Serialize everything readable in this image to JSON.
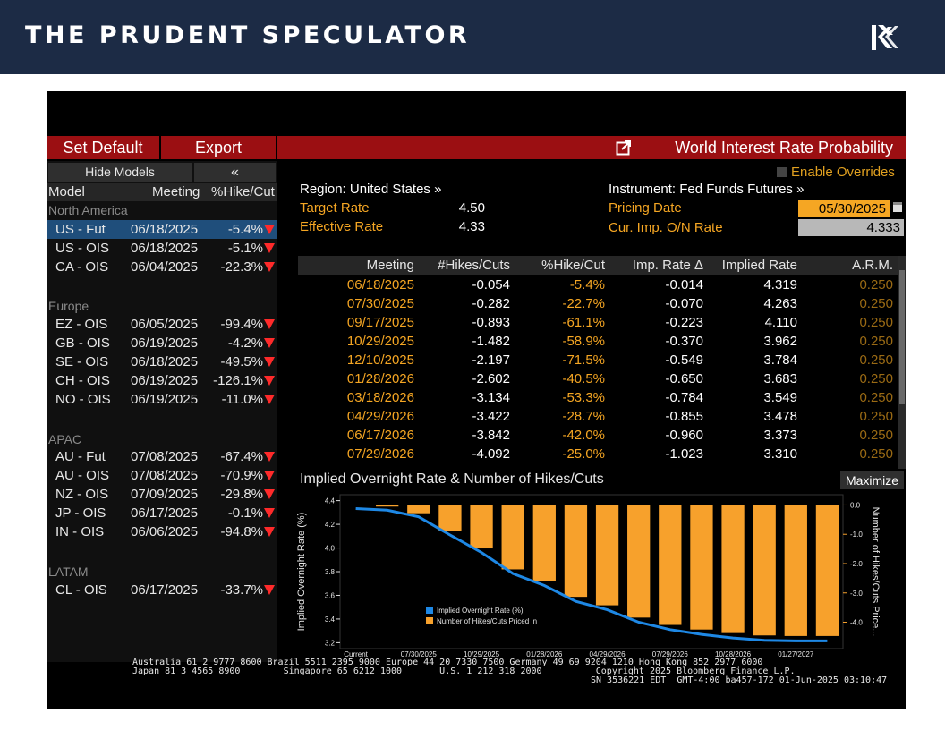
{
  "brand": {
    "title": "THE PRUDENT SPECULATOR"
  },
  "toolbar": {
    "set_default": "Set Default",
    "export": "Export",
    "window_title": "World Interest Rate Probability"
  },
  "left_panel": {
    "hide_models": "Hide Models",
    "collapse": "«",
    "headers": {
      "model": "Model",
      "meeting": "Meeting",
      "pct": "%Hike/Cut"
    },
    "groups": [
      {
        "name": "North America",
        "rows": [
          {
            "model": "US - Fut",
            "meeting": "06/18/2025",
            "pct": "-5.4%",
            "selected": true
          },
          {
            "model": "US - OIS",
            "meeting": "06/18/2025",
            "pct": "-5.1%"
          },
          {
            "model": "CA - OIS",
            "meeting": "06/04/2025",
            "pct": "-22.3%"
          }
        ]
      },
      {
        "name": "Europe",
        "rows": [
          {
            "model": "EZ - OIS",
            "meeting": "06/05/2025",
            "pct": "-99.4%"
          },
          {
            "model": "GB - OIS",
            "meeting": "06/19/2025",
            "pct": "-4.2%"
          },
          {
            "model": "SE - OIS",
            "meeting": "06/18/2025",
            "pct": "-49.5%"
          },
          {
            "model": "CH - OIS",
            "meeting": "06/19/2025",
            "pct": "-126.1%"
          },
          {
            "model": "NO - OIS",
            "meeting": "06/19/2025",
            "pct": "-11.0%"
          }
        ]
      },
      {
        "name": "APAC",
        "rows": [
          {
            "model": "AU - Fut",
            "meeting": "07/08/2025",
            "pct": "-67.4%"
          },
          {
            "model": "AU - OIS",
            "meeting": "07/08/2025",
            "pct": "-70.9%"
          },
          {
            "model": "NZ - OIS",
            "meeting": "07/09/2025",
            "pct": "-29.8%"
          },
          {
            "model": "JP - OIS",
            "meeting": "06/17/2025",
            "pct": "-0.1%"
          },
          {
            "model": "IN - OIS",
            "meeting": "06/06/2025",
            "pct": "-94.8%"
          }
        ]
      },
      {
        "name": "LATAM",
        "rows": [
          {
            "model": "CL - OIS",
            "meeting": "06/17/2025",
            "pct": "-33.7%"
          }
        ]
      }
    ]
  },
  "info": {
    "enable_overrides": "Enable Overrides",
    "region_label": "Region: United States »",
    "instrument_label": "Instrument: Fed Funds Futures »",
    "target_rate_label": "Target Rate",
    "target_rate_value": "4.50",
    "effective_rate_label": "Effective Rate",
    "effective_rate_value": "4.33",
    "pricing_date_label": "Pricing Date",
    "pricing_date_value": "05/30/2025",
    "cur_imp_label": "Cur. Imp. O/N Rate",
    "cur_imp_value": "4.333"
  },
  "table": {
    "headers": [
      "Meeting",
      "#Hikes/Cuts",
      "%Hike/Cut",
      "Imp. Rate Δ",
      "Implied Rate",
      "A.R.M."
    ],
    "rows": [
      [
        "06/18/2025",
        "-0.054",
        "-5.4%",
        "-0.014",
        "4.319",
        "0.250"
      ],
      [
        "07/30/2025",
        "-0.282",
        "-22.7%",
        "-0.070",
        "4.263",
        "0.250"
      ],
      [
        "09/17/2025",
        "-0.893",
        "-61.1%",
        "-0.223",
        "4.110",
        "0.250"
      ],
      [
        "10/29/2025",
        "-1.482",
        "-58.9%",
        "-0.370",
        "3.962",
        "0.250"
      ],
      [
        "12/10/2025",
        "-2.197",
        "-71.5%",
        "-0.549",
        "3.784",
        "0.250"
      ],
      [
        "01/28/2026",
        "-2.602",
        "-40.5%",
        "-0.650",
        "3.683",
        "0.250"
      ],
      [
        "03/18/2026",
        "-3.134",
        "-53.3%",
        "-0.784",
        "3.549",
        "0.250"
      ],
      [
        "04/29/2026",
        "-3.422",
        "-28.7%",
        "-0.855",
        "3.478",
        "0.250"
      ],
      [
        "06/17/2026",
        "-3.842",
        "-42.0%",
        "-0.960",
        "3.373",
        "0.250"
      ],
      [
        "07/29/2026",
        "-4.092",
        "-25.0%",
        "-1.023",
        "3.310",
        "0.250"
      ]
    ]
  },
  "chart": {
    "title": "Implied Overnight Rate & Number of Hikes/Cuts",
    "maximize": "Maximize",
    "left_axis_label": "Implied Overnight Rate (%)",
    "right_axis_label": "Number of Hikes/Cuts Price...",
    "legend_line": "Implied Overnight Rate (%)",
    "legend_bar": "Number of Hikes/Cuts Priced In",
    "colors": {
      "line": "#1e88e5",
      "bar": "#f7a12c"
    }
  },
  "chart_data": {
    "type": "bar",
    "x_tick_labels": [
      "Current",
      "07/30/2025",
      "10/29/2025",
      "01/28/2026",
      "04/29/2026",
      "07/29/2026",
      "10/28/2026",
      "01/27/2027"
    ],
    "left_y_ticks": [
      "4.4",
      "4.2",
      "4.0",
      "3.8",
      "3.6",
      "3.4",
      "3.2"
    ],
    "right_y_ticks": [
      "0.0",
      "-1.0",
      "-2.0",
      "-3.0",
      "-4.0"
    ],
    "ylim_left": [
      3.15,
      4.45
    ],
    "ylim_right": [
      -4.9,
      0.35
    ],
    "series": [
      {
        "name": "Implied Overnight Rate (%)",
        "type": "line",
        "values": [
          4.333,
          4.319,
          4.263,
          4.11,
          3.962,
          3.784,
          3.683,
          3.549,
          3.478,
          3.373,
          3.31,
          3.27,
          3.24,
          3.22,
          3.215,
          3.215
        ]
      },
      {
        "name": "Number of Hikes/Cuts Priced In",
        "type": "bar",
        "values": [
          0.0,
          -0.054,
          -0.282,
          -0.893,
          -1.482,
          -2.197,
          -2.602,
          -3.134,
          -3.422,
          -3.842,
          -4.092,
          -4.25,
          -4.37,
          -4.45,
          -4.47,
          -4.47
        ]
      }
    ]
  },
  "footer": {
    "line1": "Australia 61 2 9777 8600 Brazil 5511 2395 9000 Europe 44 20 7330 7500 Germany 49 69 9204 1210 Hong Kong 852 2977 6000",
    "line2": "Japan 81 3 4565 8900        Singapore 65 6212 1000       U.S. 1 212 318 2000          Copyright 2025 Bloomberg Finance L.P.",
    "line3": "SN 3536221 EDT  GMT-4:00 ba457-172 01-Jun-2025 03:10:47"
  }
}
